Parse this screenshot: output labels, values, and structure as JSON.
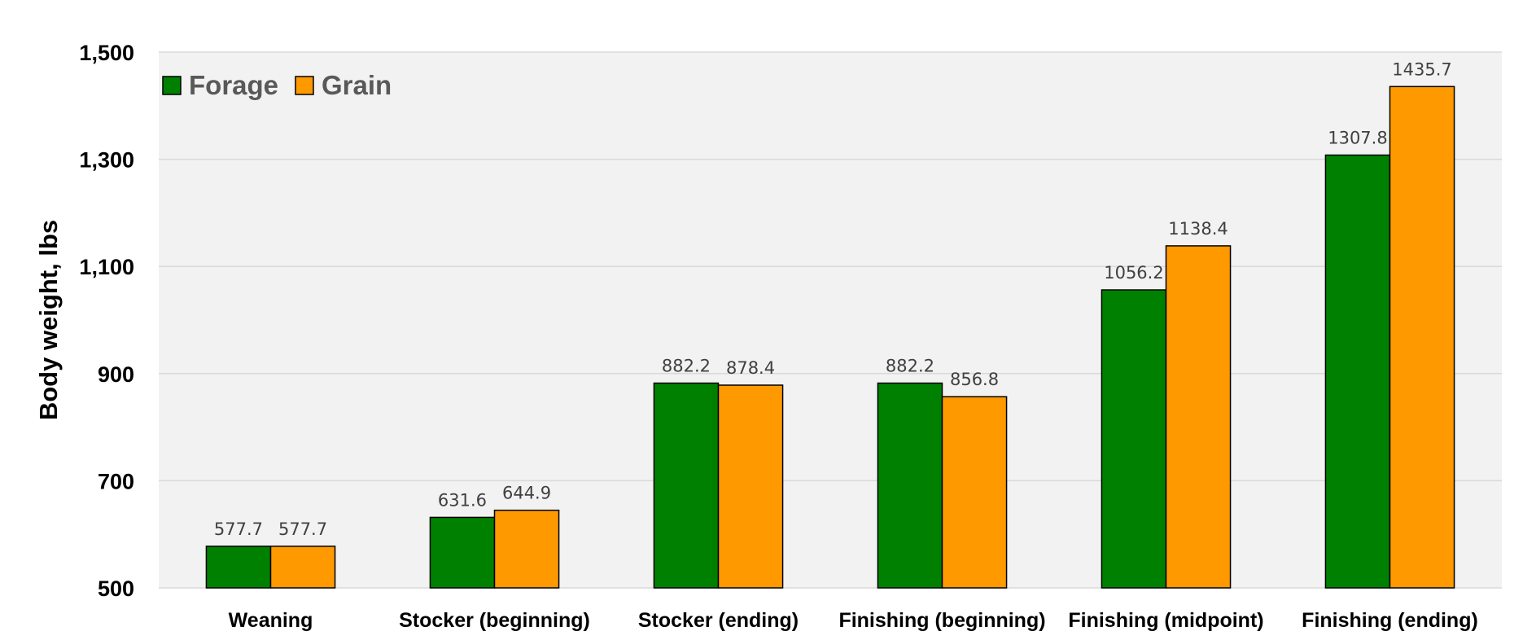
{
  "chart_data": {
    "type": "bar",
    "categories": [
      "Weaning",
      "Stocker (beginning)",
      "Stocker (ending)",
      "Finishing (beginning)",
      "Finishing (midpoint)",
      "Finishing (ending)"
    ],
    "series": [
      {
        "name": "Forage",
        "color": "#008000",
        "values": [
          577.7,
          631.6,
          882.2,
          882.2,
          1056.2,
          1307.8
        ],
        "labels": [
          "577.7",
          "631.6",
          "882.2",
          "882.2",
          "1056.2",
          "1307.8"
        ]
      },
      {
        "name": "Grain",
        "color": "#FF9900",
        "values": [
          577.7,
          644.9,
          878.4,
          856.8,
          1138.4,
          1435.7
        ],
        "labels": [
          "577.7",
          "644.9",
          "878.4",
          "856.8",
          "1138.4",
          "1435.7"
        ]
      }
    ],
    "ylabel": "Body weight, lbs",
    "xlabel": "",
    "ylim": [
      500,
      1500
    ],
    "yticks": [
      500,
      700,
      900,
      1100,
      1300,
      1500
    ],
    "ytick_labels": [
      "500",
      "700",
      "900",
      "1,100",
      "1,300",
      "1,500"
    ],
    "grid": true,
    "legend": "top-left",
    "plot_background": "#f2f2f2"
  }
}
